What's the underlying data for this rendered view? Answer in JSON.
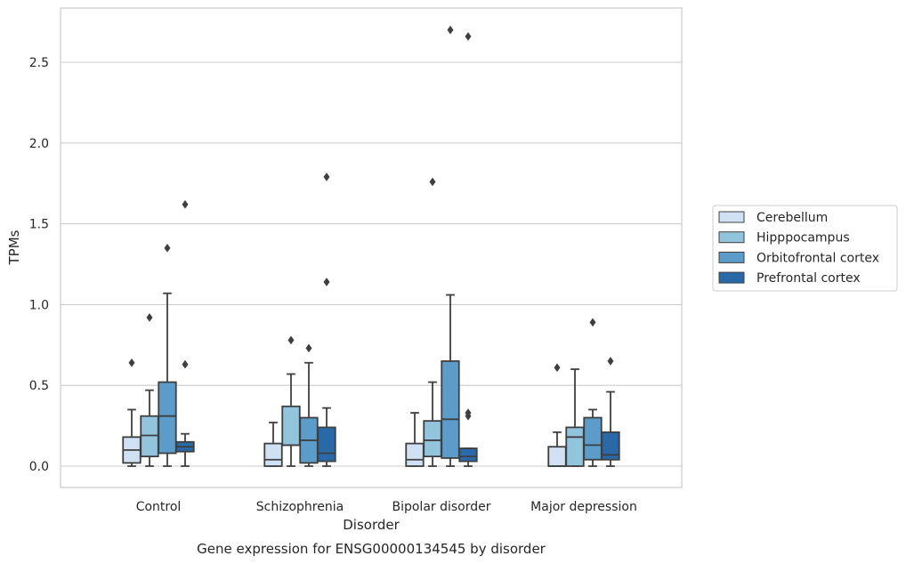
{
  "chart_data": {
    "type": "box",
    "caption": "Gene expression for ENSG00000134545 by disorder",
    "xlabel": "Disorder",
    "ylabel": "TPMs",
    "ylim": [
      -0.13,
      2.85
    ],
    "yticks": [
      "0.0",
      "0.5",
      "1.0",
      "1.5",
      "2.0",
      "2.5"
    ],
    "ytick_values": [
      0.0,
      0.5,
      1.0,
      1.5,
      2.0,
      2.5
    ],
    "grid": true,
    "legend_position": "right",
    "categories": [
      "Control",
      "Schizophrenia",
      "Bipolar disorder",
      "Major depression"
    ],
    "series": [
      {
        "name": "Cerebellum",
        "color": "#cfe1f2",
        "boxes": [
          {
            "whislo": 0.0,
            "q1": 0.02,
            "med": 0.1,
            "q3": 0.18,
            "whishi": 0.35,
            "fliers": [
              0.64
            ]
          },
          {
            "whislo": 0.0,
            "q1": 0.0,
            "med": 0.04,
            "q3": 0.14,
            "whishi": 0.27,
            "fliers": []
          },
          {
            "whislo": 0.0,
            "q1": 0.0,
            "med": 0.04,
            "q3": 0.14,
            "whishi": 0.33,
            "fliers": []
          },
          {
            "whislo": 0.0,
            "q1": 0.0,
            "med": 0.0,
            "q3": 0.12,
            "whishi": 0.21,
            "fliers": [
              0.61
            ]
          }
        ]
      },
      {
        "name": "Hipppocampus",
        "color": "#93c4de",
        "boxes": [
          {
            "whislo": 0.0,
            "q1": 0.06,
            "med": 0.19,
            "q3": 0.31,
            "whishi": 0.47,
            "fliers": [
              0.92
            ]
          },
          {
            "whislo": 0.0,
            "q1": 0.13,
            "med": 0.13,
            "q3": 0.37,
            "whishi": 0.57,
            "fliers": [
              0.78
            ]
          },
          {
            "whislo": 0.0,
            "q1": 0.06,
            "med": 0.16,
            "q3": 0.28,
            "whishi": 0.52,
            "fliers": [
              1.76
            ]
          },
          {
            "whislo": 0.0,
            "q1": 0.0,
            "med": 0.18,
            "q3": 0.24,
            "whishi": 0.6,
            "fliers": []
          }
        ]
      },
      {
        "name": "Orbitofrontal cortex",
        "color": "#5b9ccb",
        "boxes": [
          {
            "whislo": 0.0,
            "q1": 0.08,
            "med": 0.31,
            "q3": 0.52,
            "whishi": 1.07,
            "fliers": [
              1.35
            ]
          },
          {
            "whislo": 0.0,
            "q1": 0.02,
            "med": 0.16,
            "q3": 0.3,
            "whishi": 0.64,
            "fliers": [
              0.73
            ]
          },
          {
            "whislo": 0.0,
            "q1": 0.05,
            "med": 0.29,
            "q3": 0.65,
            "whishi": 1.06,
            "fliers": [
              2.7
            ]
          },
          {
            "whislo": 0.0,
            "q1": 0.04,
            "med": 0.13,
            "q3": 0.3,
            "whishi": 0.35,
            "fliers": [
              0.89
            ]
          }
        ]
      },
      {
        "name": "Prefrontal cortex",
        "color": "#2a69a8",
        "boxes": [
          {
            "whislo": 0.0,
            "q1": 0.09,
            "med": 0.12,
            "q3": 0.15,
            "whishi": 0.2,
            "fliers": [
              1.62,
              0.63
            ]
          },
          {
            "whislo": 0.0,
            "q1": 0.03,
            "med": 0.08,
            "q3": 0.24,
            "whishi": 0.36,
            "fliers": [
              1.79,
              1.14
            ]
          },
          {
            "whislo": 0.0,
            "q1": 0.03,
            "med": 0.06,
            "q3": 0.11,
            "whishi": 0.11,
            "fliers": [
              2.66,
              0.33,
              0.31
            ]
          },
          {
            "whislo": 0.0,
            "q1": 0.04,
            "med": 0.07,
            "q3": 0.21,
            "whishi": 0.46,
            "fliers": [
              0.65
            ]
          }
        ]
      }
    ]
  }
}
